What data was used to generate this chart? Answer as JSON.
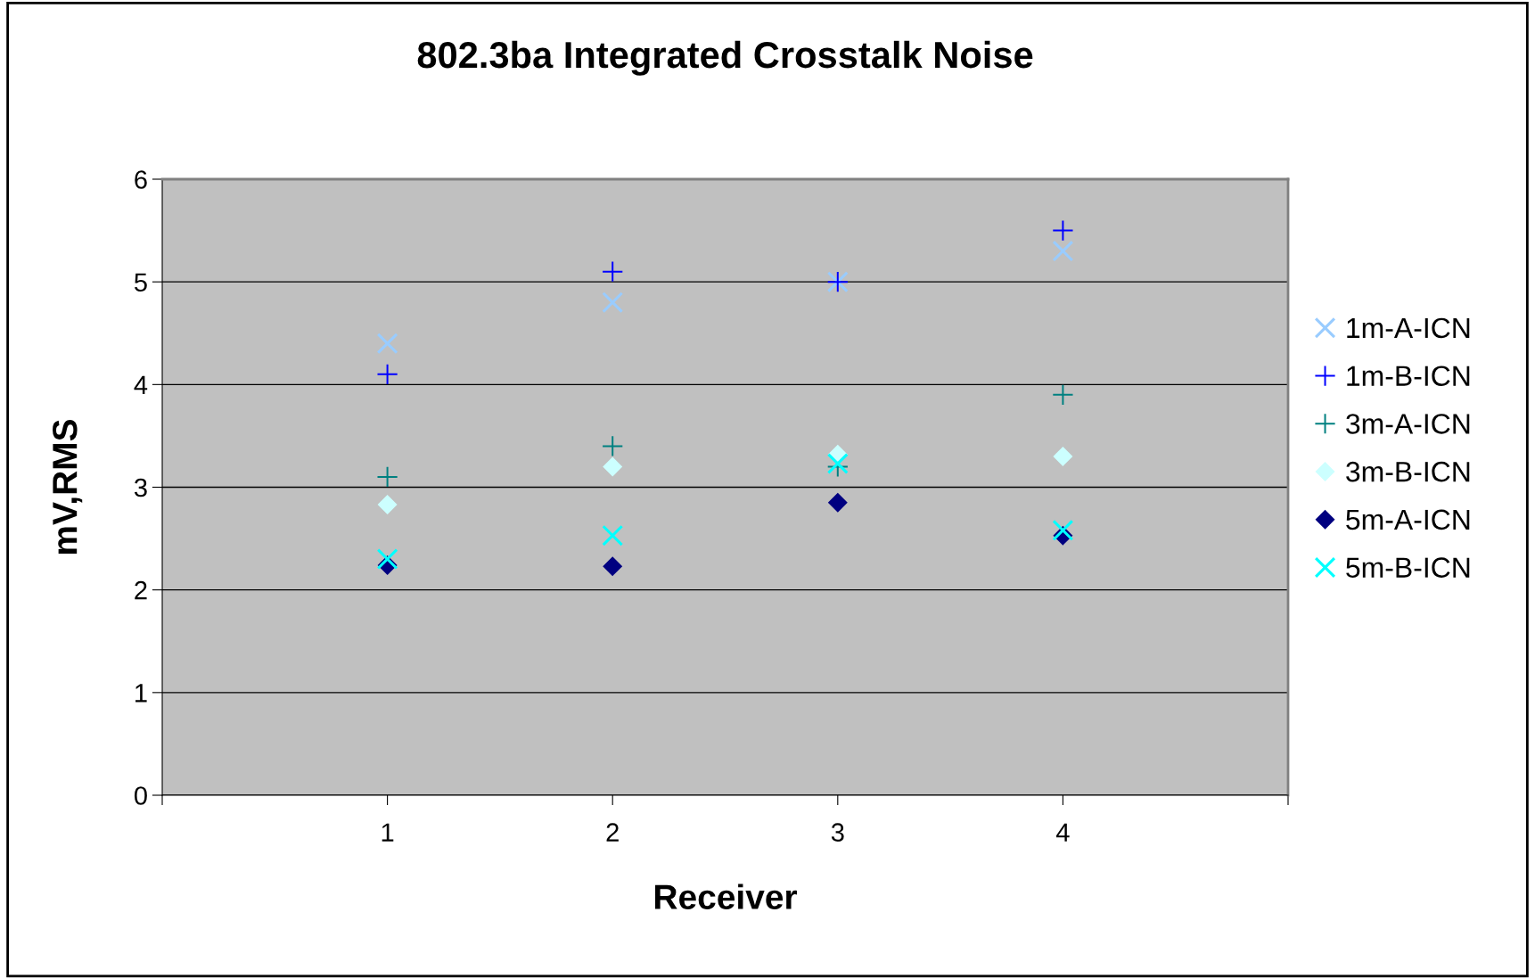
{
  "chart_data": {
    "type": "scatter",
    "title": "802.3ba Integrated Crosstalk Noise",
    "xlabel": "Receiver",
    "ylabel": "mV,RMS",
    "x": [
      1,
      2,
      3,
      4
    ],
    "series": [
      {
        "name": "1m-A-ICN",
        "color": "#99ccff",
        "values": [
          4.4,
          4.8,
          5.0,
          5.3
        ]
      },
      {
        "name": "1m-B-ICN",
        "color": "#0000ff",
        "marker": "cross",
        "values": [
          4.1,
          5.1,
          5.0,
          5.5
        ]
      },
      {
        "name": "3m-A-ICN",
        "color": "#008080",
        "marker": "cross",
        "values": [
          3.1,
          3.4,
          3.2,
          3.9
        ]
      },
      {
        "name": "3m-B-ICN",
        "color": "#ccffff",
        "marker": "diamond",
        "values": [
          2.83,
          3.2,
          3.32,
          3.3
        ]
      },
      {
        "name": "5m-A-ICN",
        "color": "#000080",
        "marker": "diamond",
        "values": [
          2.24,
          2.23,
          2.85,
          2.53
        ]
      },
      {
        "name": "5m-B-ICN",
        "color": "#00ffff",
        "values": [
          2.3,
          2.53,
          3.23,
          2.58
        ]
      }
    ],
    "marker": "cross",
    "xlim": [
      0,
      5
    ],
    "xticks": [
      {
        "value": 0,
        "label": null
      },
      1,
      2,
      3,
      4,
      {
        "value": 5,
        "label": null
      }
    ],
    "ylim": [
      0,
      6
    ],
    "yticks": [
      0,
      1,
      2,
      3,
      4,
      5,
      6
    ],
    "grid": "y",
    "legend": "right"
  }
}
